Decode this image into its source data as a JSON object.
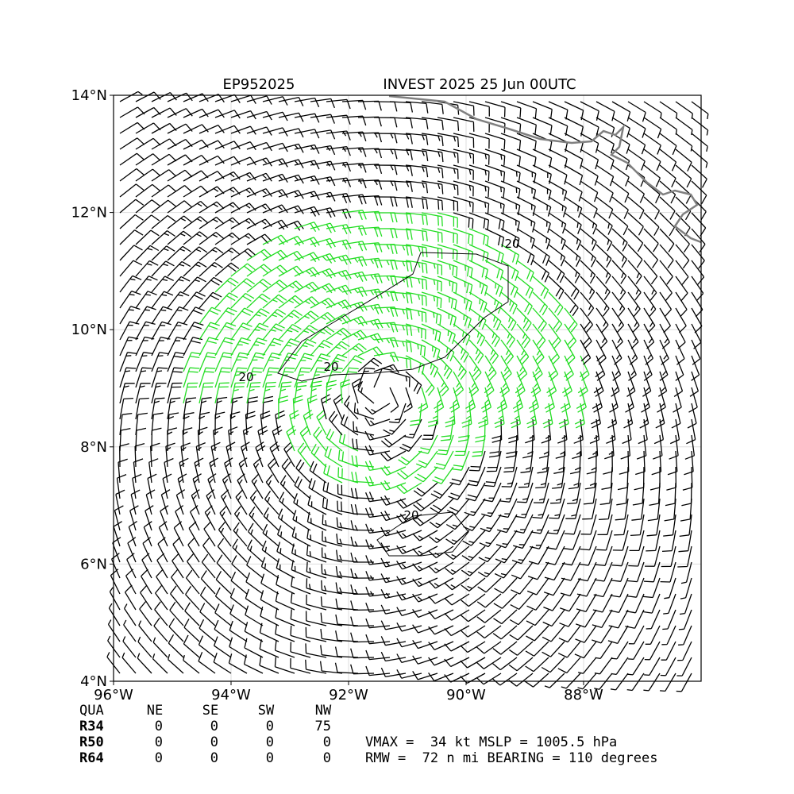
{
  "chart_data": {
    "type": "map",
    "title_left": "EP952025",
    "title_right": "INVEST 2025 25 Jun 00UTC",
    "xlim": [
      -96,
      -86
    ],
    "ylim": [
      4,
      14
    ],
    "xticks": [
      {
        "value": -96,
        "label": "96°W"
      },
      {
        "value": -94,
        "label": "94°W"
      },
      {
        "value": -92,
        "label": "92°W"
      },
      {
        "value": -90,
        "label": "90°W"
      },
      {
        "value": -88,
        "label": "88°W"
      }
    ],
    "yticks": [
      {
        "value": 4,
        "label": "4°N"
      },
      {
        "value": 6,
        "label": "6°N"
      },
      {
        "value": 8,
        "label": "8°N"
      },
      {
        "value": 10,
        "label": "10°N"
      },
      {
        "value": 12,
        "label": "12°N"
      },
      {
        "value": 14,
        "label": "14°N"
      }
    ],
    "grid": true,
    "contour_labels": [
      "20",
      "20",
      "20",
      "20"
    ]
  },
  "table": {
    "header": [
      "QUA",
      "NE",
      "SE",
      "SW",
      "NW"
    ],
    "rows": [
      [
        "R34",
        0,
        0,
        0,
        75
      ],
      [
        "R50",
        0,
        0,
        0,
        0
      ],
      [
        "R64",
        0,
        0,
        0,
        0
      ]
    ]
  },
  "info": [
    "VMAX =  34 kt MSLP = 1005.5 hPa",
    "RMW =  72 n mi BEARING = 110 degrees"
  ]
}
